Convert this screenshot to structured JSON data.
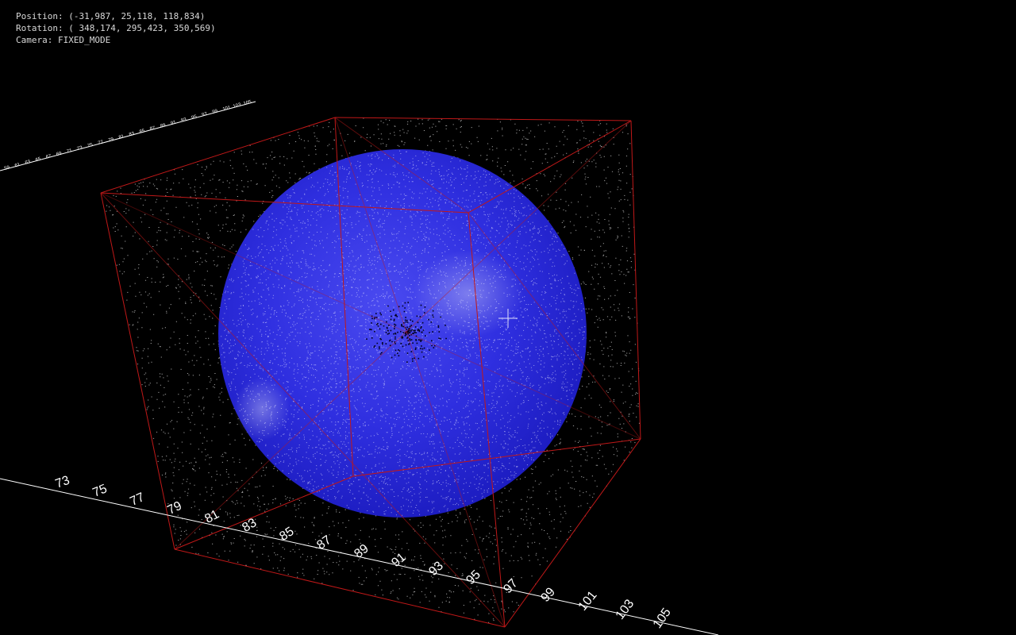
{
  "hud": {
    "position": "Position: (-31,987, 25,118, 118,834)",
    "rotation": "Rotation: ( 348,174, 295,423, 350,569)",
    "camera": "Camera: FIXED_MODE"
  },
  "colors": {
    "background": "#000000",
    "sphere": "#2a2ad8",
    "cube_edges": "#c01818",
    "points": "#ffffff",
    "axis": "#ffffff"
  },
  "front_axis_ticks": [
    "73",
    "75",
    "77",
    "79",
    "81",
    "83",
    "85",
    "87",
    "89",
    "91",
    "93",
    "95",
    "97",
    "99",
    "101",
    "103",
    "105"
  ],
  "back_axis_ticks": [
    "59",
    "61",
    "63",
    "65",
    "67",
    "69",
    "71",
    "73",
    "75",
    "77",
    "79",
    "81",
    "83",
    "85",
    "87",
    "89",
    "91",
    "93",
    "95",
    "97",
    "99",
    "101",
    "103",
    "105"
  ],
  "icons": [
    "crosshair-icon"
  ]
}
